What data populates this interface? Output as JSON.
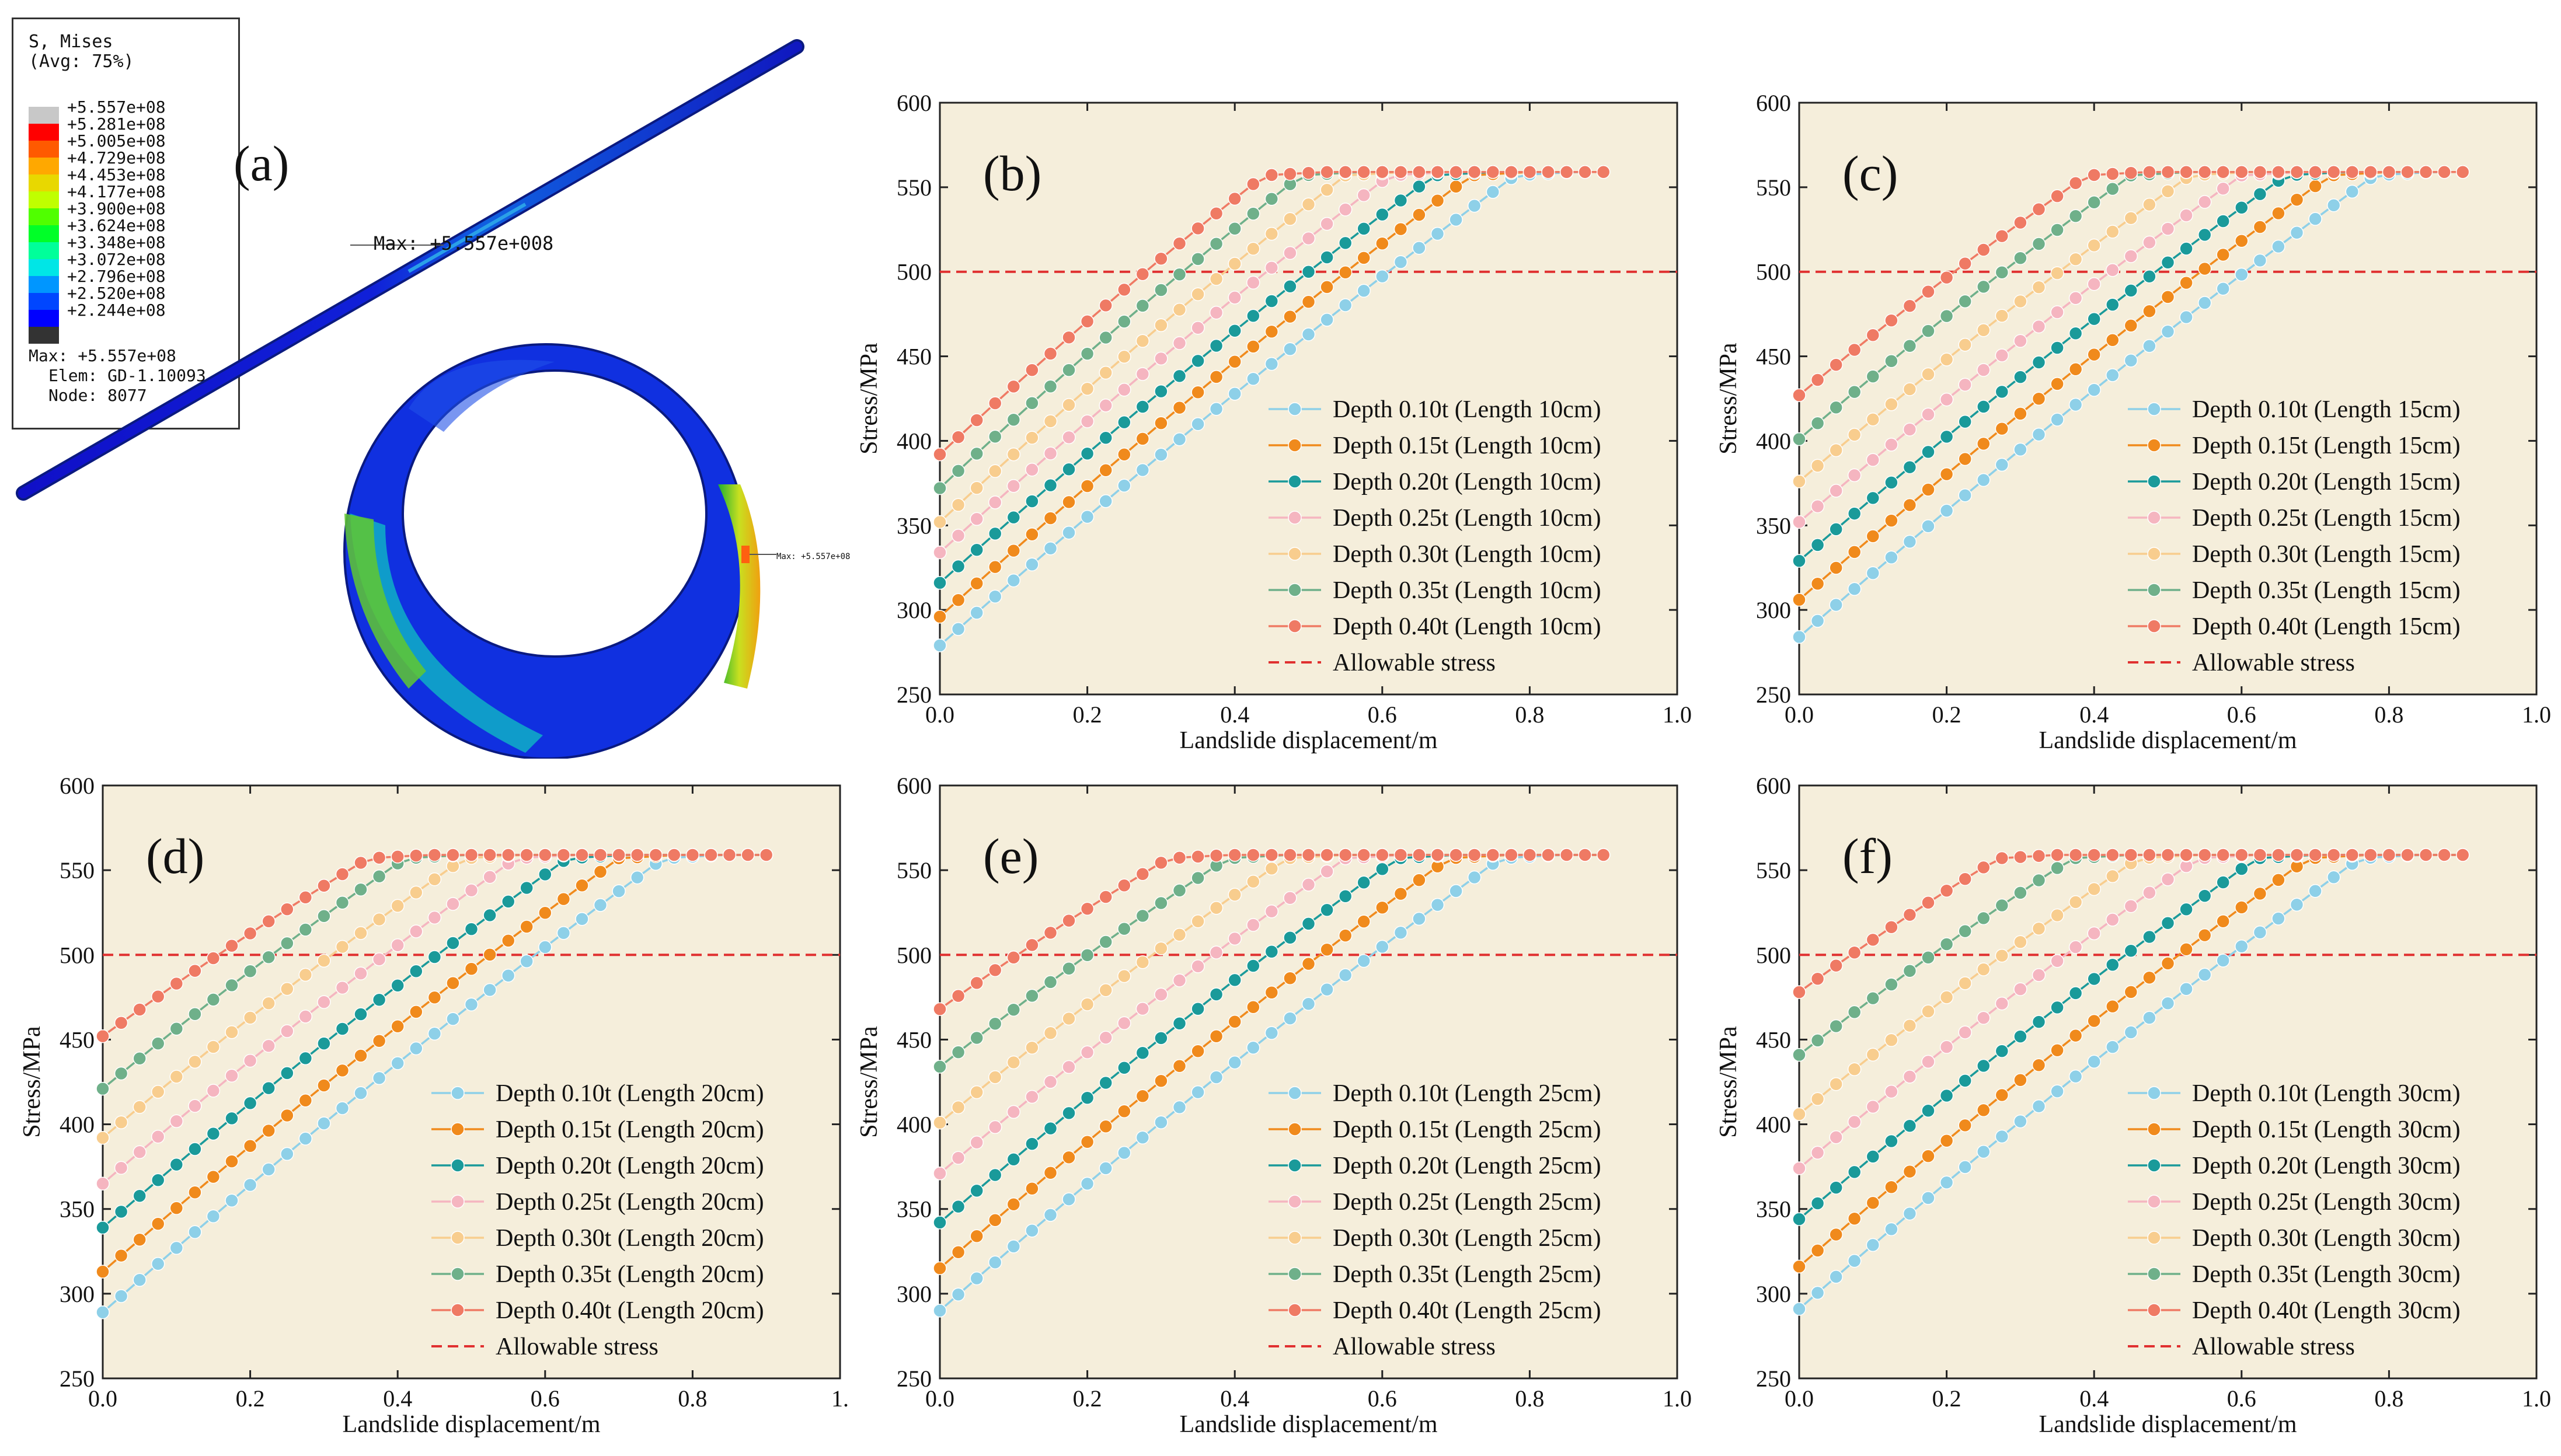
{
  "figure": {
    "panel_a": {
      "label": "(a)",
      "legend_title_1": "S, Mises",
      "legend_title_2": "(Avg: 75%)",
      "legend_levels": [
        "+5.557e+08",
        "+5.281e+08",
        "+5.005e+08",
        "+4.729e+08",
        "+4.453e+08",
        "+4.177e+08",
        "+3.900e+08",
        "+3.624e+08",
        "+3.348e+08",
        "+3.072e+08",
        "+2.796e+08",
        "+2.520e+08",
        "+2.244e+08"
      ],
      "legend_colors": [
        "#c8c8c8",
        "#ff0000",
        "#ff5a00",
        "#ffa800",
        "#e8d800",
        "#c0ff00",
        "#50ff00",
        "#00ff28",
        "#00ff9a",
        "#00e6e6",
        "#0096ff",
        "#0046ff",
        "#0000ff",
        "#333333"
      ],
      "max_line": "Max: +5.557e+08",
      "elem_line": "Elem: GD-1.10093",
      "node_line": "Node: 8077",
      "max_annotation": "Max: +5.557e+008",
      "ring_annotation": "Max: +5.557e+08"
    }
  },
  "chart_data": [
    {
      "type": "line",
      "label": "(b)",
      "xlabel": "Landslide displacement/m",
      "ylabel": "Stress/MPa",
      "xlim": [
        0,
        1.0
      ],
      "ylim": [
        250,
        600
      ],
      "xticks": [
        "0.0",
        "0.2",
        "0.4",
        "0.6",
        "0.8",
        "1.0"
      ],
      "yticks": [
        "250",
        "300",
        "350",
        "400",
        "450",
        "500",
        "550",
        "600"
      ],
      "legend_position": "bottom-right",
      "grid": false,
      "series": [
        {
          "name": "Depth 0.10t (Length 10cm)",
          "y0": 279,
          "xk": 0.78
        },
        {
          "name": "Depth 0.15t (Length 10cm)",
          "y0": 296,
          "xk": 0.72
        },
        {
          "name": "Depth 0.20t (Length 10cm)",
          "y0": 316,
          "xk": 0.67
        },
        {
          "name": "Depth 0.25t (Length 10cm)",
          "y0": 334,
          "xk": 0.61
        },
        {
          "name": "Depth 0.30t (Length 10cm)",
          "y0": 352,
          "xk": 0.55
        },
        {
          "name": "Depth 0.35t (Length 10cm)",
          "y0": 372,
          "xk": 0.49
        },
        {
          "name": "Depth 0.40t (Length 10cm)",
          "y0": 392,
          "xk": 0.44
        }
      ],
      "reference": {
        "name": "Allowable stress",
        "y": 500
      }
    },
    {
      "type": "line",
      "label": "(c)",
      "xlabel": "Landslide displacement/m",
      "ylabel": "Stress/MPa",
      "xlim": [
        0,
        1.0
      ],
      "ylim": [
        250,
        600
      ],
      "xticks": [
        "0.0",
        "0.2",
        "0.4",
        "0.6",
        "0.8",
        "1.0"
      ],
      "yticks": [
        "250",
        "300",
        "350",
        "400",
        "450",
        "500",
        "550",
        "600"
      ],
      "legend_position": "bottom-right",
      "grid": false,
      "series": [
        {
          "name": "Depth 0.10t (Length 15cm)",
          "y0": 284,
          "xk": 0.78
        },
        {
          "name": "Depth 0.15t (Length 15cm)",
          "y0": 306,
          "xk": 0.72
        },
        {
          "name": "Depth 0.20t (Length 15cm)",
          "y0": 329,
          "xk": 0.66
        },
        {
          "name": "Depth 0.25t (Length 15cm)",
          "y0": 352,
          "xk": 0.6
        },
        {
          "name": "Depth 0.30t (Length 15cm)",
          "y0": 376,
          "xk": 0.53
        },
        {
          "name": "Depth 0.35t (Length 15cm)",
          "y0": 401,
          "xk": 0.45
        },
        {
          "name": "Depth 0.40t (Length 15cm)",
          "y0": 427,
          "xk": 0.39
        }
      ],
      "reference": {
        "name": "Allowable stress",
        "y": 500
      }
    },
    {
      "type": "line",
      "label": "(d)",
      "xlabel": "Landslide displacement/m",
      "ylabel": "Stress/MPa",
      "xlim": [
        0,
        1.0
      ],
      "ylim": [
        250,
        600
      ],
      "xticks": [
        "0.0",
        "0.2",
        "0.4",
        "0.6",
        "0.8",
        "1."
      ],
      "yticks": [
        "250",
        "300",
        "350",
        "400",
        "450",
        "500",
        "550",
        "600"
      ],
      "legend_position": "bottom-right",
      "grid": false,
      "series": [
        {
          "name": "Depth 0.10t (Length 20cm)",
          "y0": 289,
          "xk": 0.76
        },
        {
          "name": "Depth 0.15t (Length 20cm)",
          "y0": 313,
          "xk": 0.7
        },
        {
          "name": "Depth 0.20t (Length 20cm)",
          "y0": 339,
          "xk": 0.63
        },
        {
          "name": "Depth 0.25t (Length 20cm)",
          "y0": 365,
          "xk": 0.56
        },
        {
          "name": "Depth 0.30t (Length 20cm)",
          "y0": 392,
          "xk": 0.49
        },
        {
          "name": "Depth 0.35t (Length 20cm)",
          "y0": 421,
          "xk": 0.41
        },
        {
          "name": "Depth 0.40t (Length 20cm)",
          "y0": 452,
          "xk": 0.36
        }
      ],
      "reference": {
        "name": "Allowable stress",
        "y": 500
      }
    },
    {
      "type": "line",
      "label": "(e)",
      "xlabel": "Landslide displacement/m",
      "ylabel": "Stress/MPa",
      "xlim": [
        0,
        1.0
      ],
      "ylim": [
        250,
        600
      ],
      "xticks": [
        "0.0",
        "0.2",
        "0.4",
        "0.6",
        "0.8",
        "1.0"
      ],
      "yticks": [
        "250",
        "300",
        "350",
        "400",
        "450",
        "500",
        "550",
        "600"
      ],
      "legend_position": "bottom-right",
      "grid": false,
      "series": [
        {
          "name": "Depth 0.10t (Length 25cm)",
          "y0": 290,
          "xk": 0.76
        },
        {
          "name": "Depth 0.15t (Length 25cm)",
          "y0": 315,
          "xk": 0.69
        },
        {
          "name": "Depth 0.20t (Length 25cm)",
          "y0": 342,
          "xk": 0.62
        },
        {
          "name": "Depth 0.25t (Length 25cm)",
          "y0": 371,
          "xk": 0.55
        },
        {
          "name": "Depth 0.30t (Length 25cm)",
          "y0": 401,
          "xk": 0.47
        },
        {
          "name": "Depth 0.35t (Length 25cm)",
          "y0": 434,
          "xk": 0.39
        },
        {
          "name": "Depth 0.40t (Length 25cm)",
          "y0": 468,
          "xk": 0.31
        }
      ],
      "reference": {
        "name": "Allowable stress",
        "y": 500
      }
    },
    {
      "type": "line",
      "label": "(f)",
      "xlabel": "Landslide displacement/m",
      "ylabel": "Stress/MPa",
      "xlim": [
        0,
        1.0
      ],
      "ylim": [
        250,
        600
      ],
      "xticks": [
        "0.0",
        "0.2",
        "0.4",
        "0.6",
        "0.8",
        "1.0"
      ],
      "yticks": [
        "250",
        "300",
        "350",
        "400",
        "450",
        "500",
        "550",
        "600"
      ],
      "legend_position": "bottom-right",
      "grid": false,
      "series": [
        {
          "name": "Depth 0.10t (Length 30cm)",
          "y0": 291,
          "xk": 0.76
        },
        {
          "name": "Depth 0.15t (Length 30cm)",
          "y0": 316,
          "xk": 0.69
        },
        {
          "name": "Depth 0.20t (Length 30cm)",
          "y0": 344,
          "xk": 0.62
        },
        {
          "name": "Depth 0.25t (Length 30cm)",
          "y0": 374,
          "xk": 0.54
        },
        {
          "name": "Depth 0.30t (Length 30cm)",
          "y0": 406,
          "xk": 0.46
        },
        {
          "name": "Depth 0.35t (Length 30cm)",
          "y0": 441,
          "xk": 0.37
        },
        {
          "name": "Depth 0.40t (Length 30cm)",
          "y0": 478,
          "xk": 0.27
        }
      ],
      "reference": {
        "name": "Allowable stress",
        "y": 500
      }
    }
  ],
  "colors": {
    "plot_bg": "#f5eedb",
    "series": [
      "#8ed0e8",
      "#f08a1c",
      "#1a9a9a",
      "#f5b5c0",
      "#f8cd8e",
      "#6fb08a",
      "#ef7a64"
    ],
    "reference": "#e03030"
  },
  "common": {
    "plateau": 557,
    "x_end": 0.9
  }
}
